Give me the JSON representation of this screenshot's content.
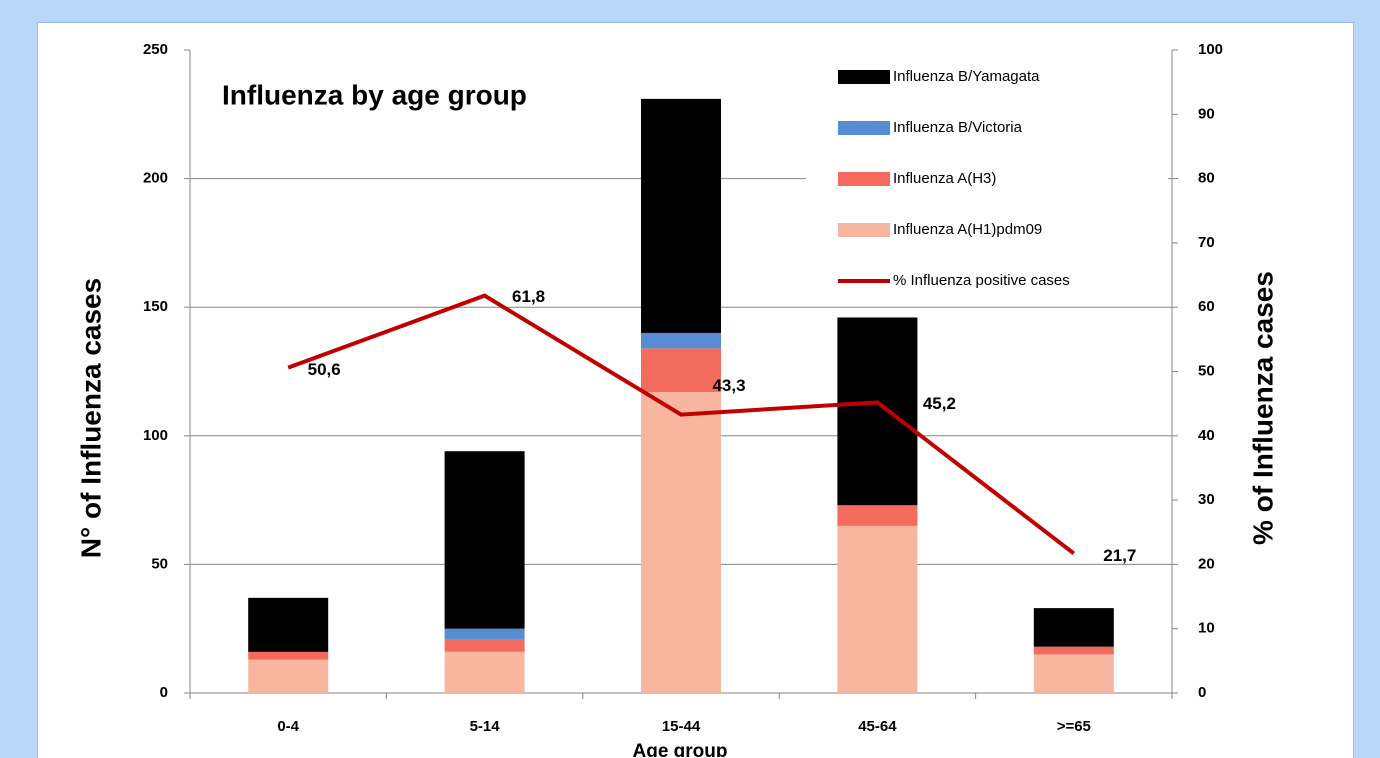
{
  "chart_data": {
    "type": "bar",
    "title": "Influenza by age group",
    "x_label": "Age group",
    "y_label": "N°  of Influenza cases",
    "y2_label": "% of Influenza cases",
    "categories": [
      "0-4",
      "5-14",
      "15-44",
      "45-64",
      ">=65"
    ],
    "stacked": true,
    "grid": true,
    "legend": "upper right",
    "ylim": [
      0,
      250
    ],
    "yticks": [
      0,
      50,
      100,
      150,
      200,
      250
    ],
    "y2lim": [
      0,
      100
    ],
    "y2ticks": [
      0,
      10,
      20,
      30,
      40,
      50,
      60,
      70,
      80,
      90,
      100
    ],
    "series": [
      {
        "name": "Influenza B/Yamagata",
        "color": "#000000",
        "values": [
          21,
          69,
          91,
          73,
          15
        ]
      },
      {
        "name": "Influenza B/Victoria",
        "color": "#558ed5",
        "values": [
          0,
          4,
          6,
          0,
          0
        ]
      },
      {
        "name": "Influenza A(H3)",
        "color": "#f36b5c",
        "values": [
          3,
          5,
          17,
          8,
          3
        ]
      },
      {
        "name": "Influenza A(H1)pdm09",
        "color": "#f8b5a0",
        "values": [
          13,
          16,
          117,
          65,
          15
        ]
      },
      {
        "name": "% Influenza positive cases",
        "color": "#c00000",
        "type": "line",
        "axis": "y2",
        "values": [
          50.6,
          61.8,
          43.3,
          45.2,
          21.7
        ],
        "value_labels": [
          "50,6",
          "61,8",
          "43,3",
          "45,2",
          "21,7"
        ]
      }
    ]
  }
}
